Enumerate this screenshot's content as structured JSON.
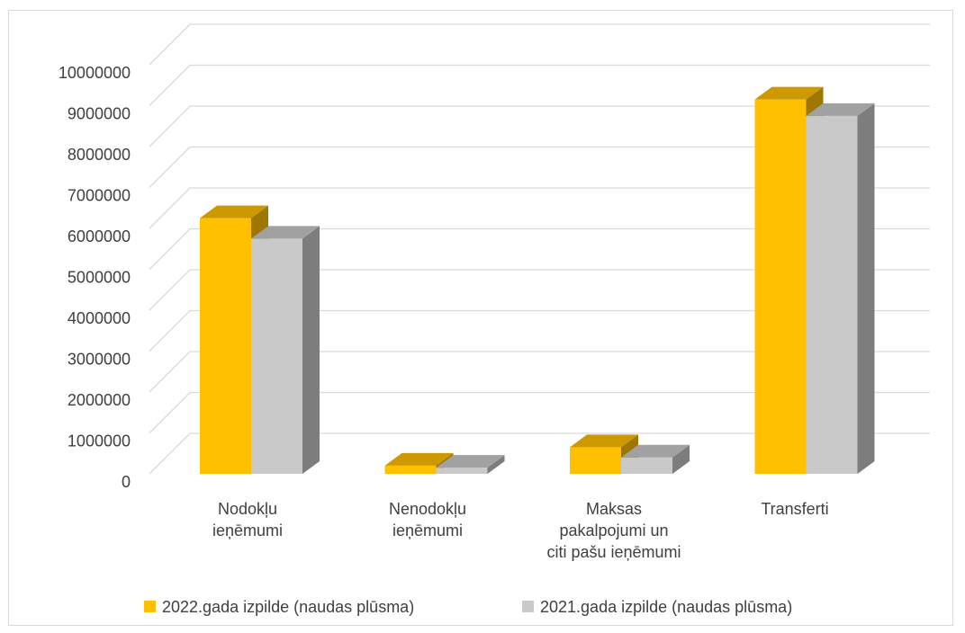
{
  "chart_data": {
    "type": "bar",
    "style": "3d-clustered-column",
    "categories": [
      [
        "Nodokļu",
        "ieņēmumi"
      ],
      [
        "Nenodokļu",
        "ieņēmumi"
      ],
      [
        "Maksas",
        "pakalpojumi un",
        "citi pašu ieņēmumi"
      ],
      [
        "Transferti"
      ]
    ],
    "series": [
      {
        "name": "2022.gada izpilde (naudas plūsma)",
        "color": "#ffc000",
        "values": [
          6250000,
          200000,
          650000,
          9150000
        ]
      },
      {
        "name": "2021.gada izpilde (naudas plūsma)",
        "color": "#c9c9c9",
        "values": [
          5750000,
          150000,
          400000,
          8750000
        ]
      }
    ],
    "yticks": [
      "0",
      "1000000",
      "2000000",
      "3000000",
      "4000000",
      "5000000",
      "6000000",
      "7000000",
      "8000000",
      "9000000",
      "10000000"
    ],
    "ylim": [
      0,
      10000000
    ],
    "grid": true,
    "legend": "bottom"
  }
}
